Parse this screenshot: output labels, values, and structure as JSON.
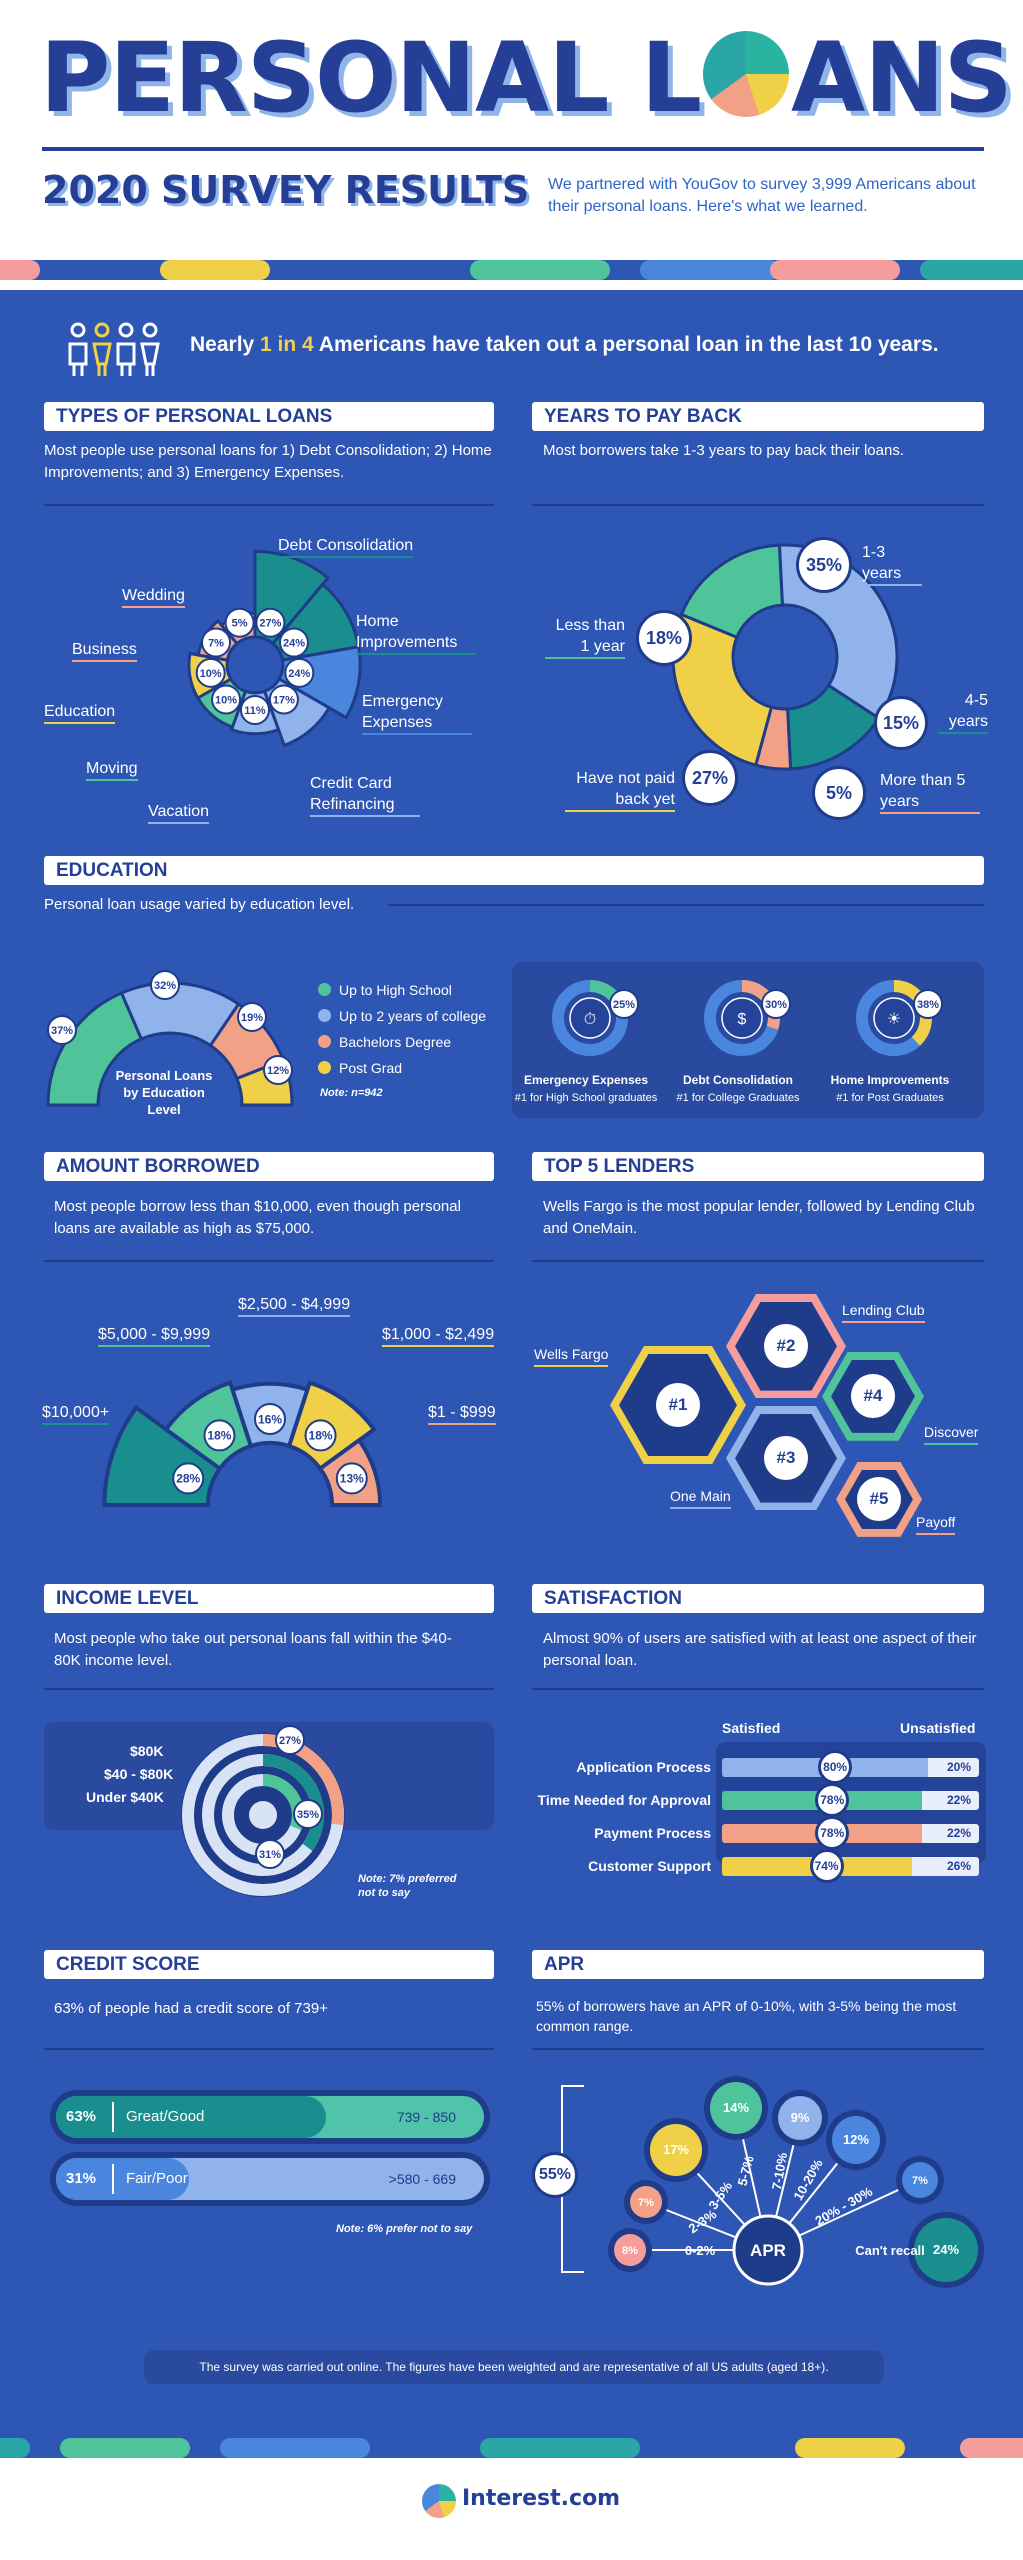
{
  "header": {
    "title_pre": "PERSONAL L",
    "title_post": "ANS",
    "subtitle": "2020 SURVEY RESULTS",
    "description": "We partnered with YouGov to survey 3,999 Americans about their personal loans. Here's what we learned."
  },
  "headline": {
    "pre": "Nearly ",
    "hl": "1 in 4",
    "post": " Americans have taken out a personal loan in the last 10 years."
  },
  "colors": {
    "bg": "#2e56b5",
    "dark": "#1f3c8a",
    "teal": "#1a8e8e",
    "green": "#4fc49a",
    "lightblue": "#8fb3ea",
    "blue": "#4a86dd",
    "yellow": "#f0d046",
    "peach": "#f2a186",
    "pink": "#f59d9d"
  },
  "sections": {
    "types": "TYPES OF PERSONAL LOANS",
    "years": "YEARS TO PAY BACK",
    "education": "EDUCATION",
    "amount": "AMOUNT BORROWED",
    "lenders": "TOP 5 LENDERS",
    "income": "INCOME LEVEL",
    "satisfaction": "SATISFACTION",
    "credit": "CREDIT SCORE",
    "apr": "APR"
  },
  "texts": {
    "types": "Most people use personal loans for 1) Debt Consolidation; 2) Home Improvements; and 3) Emergency Expenses.",
    "years": "Most borrowers take 1-3 years to pay back their loans.",
    "education": "Personal loan usage varied by education level.",
    "amount": "Most people borrow less than $10,000, even though personal loans are available as high as $75,000.",
    "lenders": "Wells Fargo is the most popular lender, followed by Lending Club and OneMain.",
    "income": "Most people who take out personal loans fall within the $40-80K income level.",
    "satisfaction": "Almost 90% of users are satisfied with at least one aspect of their personal loan.",
    "credit": "63% of people had a credit score of 739+",
    "apr": "55% of borrowers have an APR of 0-10%, with 3-5% being the most common range."
  },
  "chart_data": [
    {
      "type": "pie",
      "id": "types",
      "categories": [
        "Debt Consolidation",
        "Home Improvements",
        "Emergency Expenses",
        "Credit Card Refinancing",
        "Vacation",
        "Moving",
        "Education",
        "Business",
        "Wedding"
      ],
      "values": [
        27,
        24,
        24,
        17,
        11,
        10,
        10,
        7,
        5
      ],
      "labels": [
        "27%",
        "24%",
        "24%",
        "17%",
        "11%",
        "10%",
        "10%",
        "7%",
        "5%"
      ]
    },
    {
      "type": "pie",
      "id": "years",
      "categories": [
        "1-3 years",
        "4-5 years",
        "More than 5 years",
        "Have not paid back yet",
        "Less than 1 year"
      ],
      "values": [
        35,
        15,
        5,
        27,
        18
      ],
      "labels": [
        "35%",
        "15%",
        "5%",
        "27%",
        "18%"
      ]
    },
    {
      "type": "pie",
      "id": "education",
      "center_label": "Personal Loans by Education Level",
      "categories": [
        "Up to High School",
        "Up to 2 years of college",
        "Bachelors Degree",
        "Post Grad"
      ],
      "values": [
        37,
        32,
        19,
        12
      ],
      "labels": [
        "37%",
        "32%",
        "19%",
        "12%"
      ],
      "note": "Note: n=942"
    },
    {
      "type": "pie",
      "id": "education_top",
      "items": [
        {
          "title": "Emergency Expenses",
          "sub": "#1 for High School graduates",
          "value": 25,
          "label": "25%"
        },
        {
          "title": "Debt Consolidation",
          "sub": "#1 for College Graduates",
          "value": 30,
          "label": "30%"
        },
        {
          "title": "Home Improvements",
          "sub": "#1 for Post Graduates",
          "value": 38,
          "label": "38%"
        }
      ]
    },
    {
      "type": "bar",
      "id": "amount",
      "categories": [
        "$10,000+",
        "$5,000 - $9,999",
        "$2,500 - $4,999",
        "$1,000 - $2,499",
        "$1 - $999"
      ],
      "values": [
        28,
        18,
        16,
        18,
        13
      ],
      "labels": [
        "28%",
        "18%",
        "16%",
        "18%",
        "13%"
      ]
    },
    {
      "type": "table",
      "id": "lenders",
      "ranks": [
        {
          "rank": "#1",
          "name": "Wells Fargo"
        },
        {
          "rank": "#2",
          "name": "Lending Club"
        },
        {
          "rank": "#3",
          "name": "One Main"
        },
        {
          "rank": "#4",
          "name": "Discover"
        },
        {
          "rank": "#5",
          "name": "Payoff"
        }
      ]
    },
    {
      "type": "pie",
      "id": "income",
      "categories": [
        "$80K",
        "$40 - $80K",
        "Under $40K"
      ],
      "values": [
        27,
        35,
        31
      ],
      "labels": [
        "27%",
        "35%",
        "31%"
      ],
      "note": "Note: 7% preferred not to say"
    },
    {
      "type": "bar",
      "id": "satisfaction",
      "col_satisfied": "Satisfied",
      "col_unsatisfied": "Unsatisfied",
      "categories": [
        "Application Process",
        "Time Needed for Approval",
        "Payment Process",
        "Customer Support"
      ],
      "series": [
        {
          "name": "Satisfied",
          "values": [
            80,
            78,
            78,
            74
          ],
          "labels": [
            "80%",
            "78%",
            "78%",
            "74%"
          ]
        },
        {
          "name": "Unsatisfied",
          "values": [
            20,
            22,
            22,
            26
          ],
          "labels": [
            "20%",
            "22%",
            "22%",
            "26%"
          ]
        }
      ]
    },
    {
      "type": "bar",
      "id": "credit",
      "categories": [
        "Great/Good",
        "Fair/Poor"
      ],
      "ranges": [
        "739 - 850",
        ">580 - 669"
      ],
      "values": [
        63,
        31
      ],
      "labels": [
        "63%",
        "31%"
      ],
      "note": "Note: 6% prefer not to say"
    },
    {
      "type": "bar",
      "id": "apr",
      "center": "APR",
      "bracket": "55%",
      "categories": [
        "0-2%",
        "2-3%",
        "3-5%",
        "5-7%",
        "7-10%",
        "10-20%",
        "20% - 30%",
        "Can't recall"
      ],
      "values": [
        8,
        7,
        17,
        14,
        9,
        12,
        7,
        24
      ],
      "labels": [
        "8%",
        "7%",
        "17%",
        "14%",
        "9%",
        "12%",
        "7%",
        "24%"
      ]
    }
  ],
  "footer_note": "The survey was carried out online. The figures have been weighted and are representative of all US adults (aged 18+).",
  "brand": "Interest.com"
}
